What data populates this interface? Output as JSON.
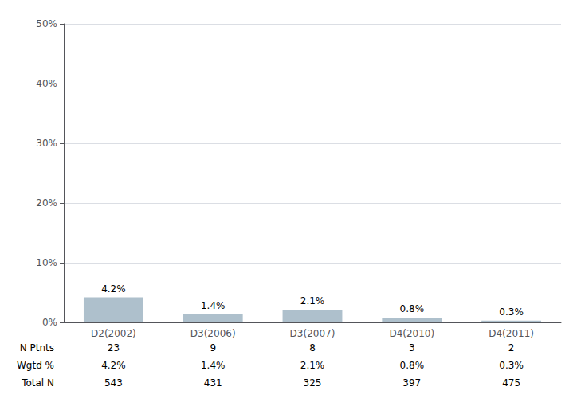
{
  "chart_data": {
    "type": "bar",
    "categories": [
      "D2(2002)",
      "D3(2006)",
      "D3(2007)",
      "D4(2010)",
      "D4(2011)"
    ],
    "values": [
      4.2,
      1.4,
      2.1,
      0.8,
      0.3
    ],
    "value_labels": [
      "4.2%",
      "1.4%",
      "2.1%",
      "0.8%",
      "0.3%"
    ],
    "data_labels": true,
    "color": "#aec0cc",
    "ylim": [
      0,
      50
    ],
    "yticks": [
      {
        "value": 0,
        "label": "0%"
      },
      {
        "value": 10,
        "label": "10%"
      },
      {
        "value": 20,
        "label": "20%"
      },
      {
        "value": 30,
        "label": "30%"
      },
      {
        "value": 40,
        "label": "40%"
      },
      {
        "value": 50,
        "label": "50%"
      }
    ],
    "grid": true,
    "table": [
      {
        "label": "N Ptnts",
        "values": [
          23,
          9,
          8,
          3,
          2
        ]
      },
      {
        "label": "Wgtd %",
        "values": [
          4.2,
          1.4,
          2.1,
          0.8,
          0.3
        ],
        "value_labels": [
          "4.2%",
          "1.4%",
          "2.1%",
          "0.8%",
          "0.3%"
        ]
      },
      {
        "label": "Total N",
        "values": [
          543,
          431,
          325,
          397,
          475
        ]
      }
    ]
  }
}
